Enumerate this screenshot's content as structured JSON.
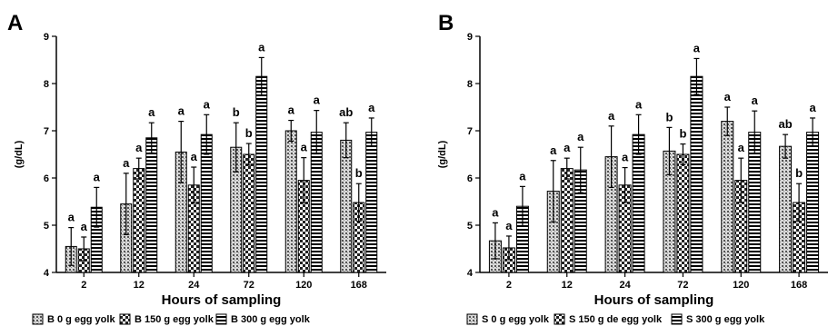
{
  "chart_data": [
    {
      "type": "bar",
      "panel_label": "A",
      "categories": [
        "2",
        "12",
        "24",
        "72",
        "120",
        "168"
      ],
      "xlabel": "Hours of sampling",
      "ylabel": "(g/dL)",
      "ylim": [
        4,
        9
      ],
      "yticks": [
        4,
        5,
        6,
        7,
        8,
        9
      ],
      "grid": false,
      "legend_position": "bottom",
      "series": [
        {
          "name": "B 0 g egg yolk",
          "pattern": "dots",
          "values": [
            4.55,
            5.45,
            6.55,
            6.65,
            7.0,
            6.8
          ],
          "errors": [
            0.4,
            0.65,
            0.65,
            0.52,
            0.22,
            0.37
          ],
          "labels": [
            "a",
            "a",
            "a",
            "b",
            "a",
            "ab"
          ]
        },
        {
          "name": "B 150 g egg yolk",
          "pattern": "checker",
          "values": [
            4.5,
            6.2,
            5.85,
            6.5,
            5.95,
            5.48
          ],
          "errors": [
            0.25,
            0.22,
            0.38,
            0.23,
            0.48,
            0.4
          ],
          "labels": [
            "a",
            "a",
            "a",
            "b",
            "a",
            "b"
          ]
        },
        {
          "name": "B 300 g egg yolk",
          "pattern": "hstripes",
          "values": [
            5.38,
            6.85,
            6.92,
            8.15,
            6.97,
            6.97
          ],
          "errors": [
            0.42,
            0.32,
            0.42,
            0.4,
            0.46,
            0.3
          ],
          "labels": [
            "a",
            "a",
            "a",
            "a",
            "a",
            "a"
          ]
        }
      ]
    },
    {
      "type": "bar",
      "panel_label": "B",
      "categories": [
        "2",
        "12",
        "24",
        "72",
        "120",
        "168"
      ],
      "xlabel": "Hours of sampling",
      "ylabel": "(g/dL)",
      "ylim": [
        4,
        9
      ],
      "yticks": [
        4,
        5,
        6,
        7,
        8,
        9
      ],
      "grid": false,
      "legend_position": "bottom",
      "series": [
        {
          "name": "S 0 g egg yolk",
          "pattern": "dots",
          "values": [
            4.67,
            5.72,
            6.45,
            6.57,
            7.2,
            6.67
          ],
          "errors": [
            0.38,
            0.65,
            0.65,
            0.5,
            0.3,
            0.25
          ],
          "labels": [
            "a",
            "a",
            "a",
            "b",
            "a",
            "ab"
          ]
        },
        {
          "name": "S 150 g de egg yolk",
          "pattern": "checker",
          "values": [
            4.52,
            6.2,
            5.85,
            6.5,
            5.95,
            5.48
          ],
          "errors": [
            0.25,
            0.22,
            0.37,
            0.22,
            0.47,
            0.4
          ],
          "labels": [
            "a",
            "a",
            "a",
            "b",
            "a",
            "b"
          ]
        },
        {
          "name": "S 300 g egg yolk",
          "pattern": "hstripes",
          "values": [
            5.4,
            6.17,
            6.92,
            8.15,
            6.97,
            6.97
          ],
          "errors": [
            0.42,
            0.48,
            0.42,
            0.38,
            0.45,
            0.3
          ],
          "labels": [
            "a",
            "a",
            "a",
            "a",
            "a",
            "a"
          ]
        }
      ]
    }
  ]
}
